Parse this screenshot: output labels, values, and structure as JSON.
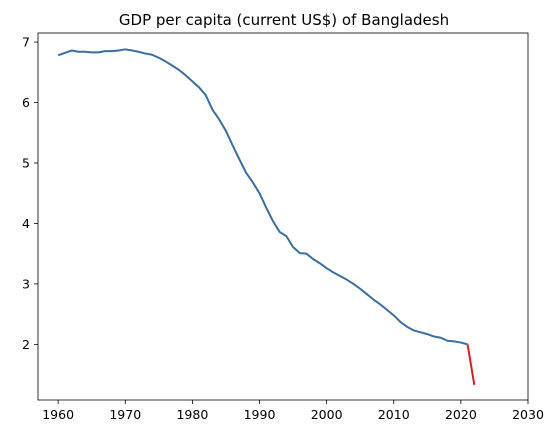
{
  "chart_data": {
    "type": "line",
    "title": "GDP per capita (current US$) of Bangladesh",
    "xlabel": "",
    "ylabel": "",
    "xlim": [
      1957,
      2030
    ],
    "ylim": [
      1.08,
      7.15
    ],
    "x_ticks": [
      1960,
      1970,
      1980,
      1990,
      2000,
      2010,
      2020,
      2030
    ],
    "y_ticks": [
      2,
      3,
      4,
      5,
      6,
      7
    ],
    "grid": false,
    "legend": "none",
    "series": [
      {
        "color": "#3a6ea5",
        "x": [
          1960,
          1961,
          1962,
          1963,
          1964,
          1965,
          1966,
          1967,
          1968,
          1969,
          1970,
          1971,
          1972,
          1973,
          1974,
          1975,
          1976,
          1977,
          1978,
          1979,
          1980,
          1981,
          1982,
          1983,
          1984,
          1985,
          1986,
          1987,
          1988,
          1989,
          1990,
          1991,
          1992,
          1993,
          1994,
          1995,
          1996,
          1997,
          1998,
          1999,
          2000,
          2001,
          2002,
          2003,
          2004,
          2005,
          2006,
          2007,
          2008,
          2009,
          2010,
          2011,
          2012,
          2013,
          2014,
          2015,
          2016,
          2017,
          2018,
          2019,
          2020,
          2021
        ],
        "values": [
          6.78,
          6.82,
          6.86,
          6.84,
          6.84,
          6.83,
          6.83,
          6.85,
          6.85,
          6.86,
          6.88,
          6.86,
          6.84,
          6.81,
          6.79,
          6.74,
          6.68,
          6.61,
          6.54,
          6.45,
          6.35,
          6.25,
          6.12,
          5.88,
          5.72,
          5.53,
          5.29,
          5.06,
          4.84,
          4.68,
          4.5,
          4.26,
          4.04,
          3.86,
          3.79,
          3.61,
          3.51,
          3.5,
          3.41,
          3.34,
          3.26,
          3.19,
          3.13,
          3.07,
          3.0,
          2.92,
          2.83,
          2.74,
          2.66,
          2.57,
          2.48,
          2.37,
          2.29,
          2.23,
          2.2,
          2.17,
          2.13,
          2.11,
          2.06,
          2.05,
          2.03,
          2.0
        ]
      },
      {
        "color": "#e41a1c",
        "x": [
          2021,
          2022
        ],
        "values": [
          2.0,
          1.33
        ]
      }
    ]
  }
}
